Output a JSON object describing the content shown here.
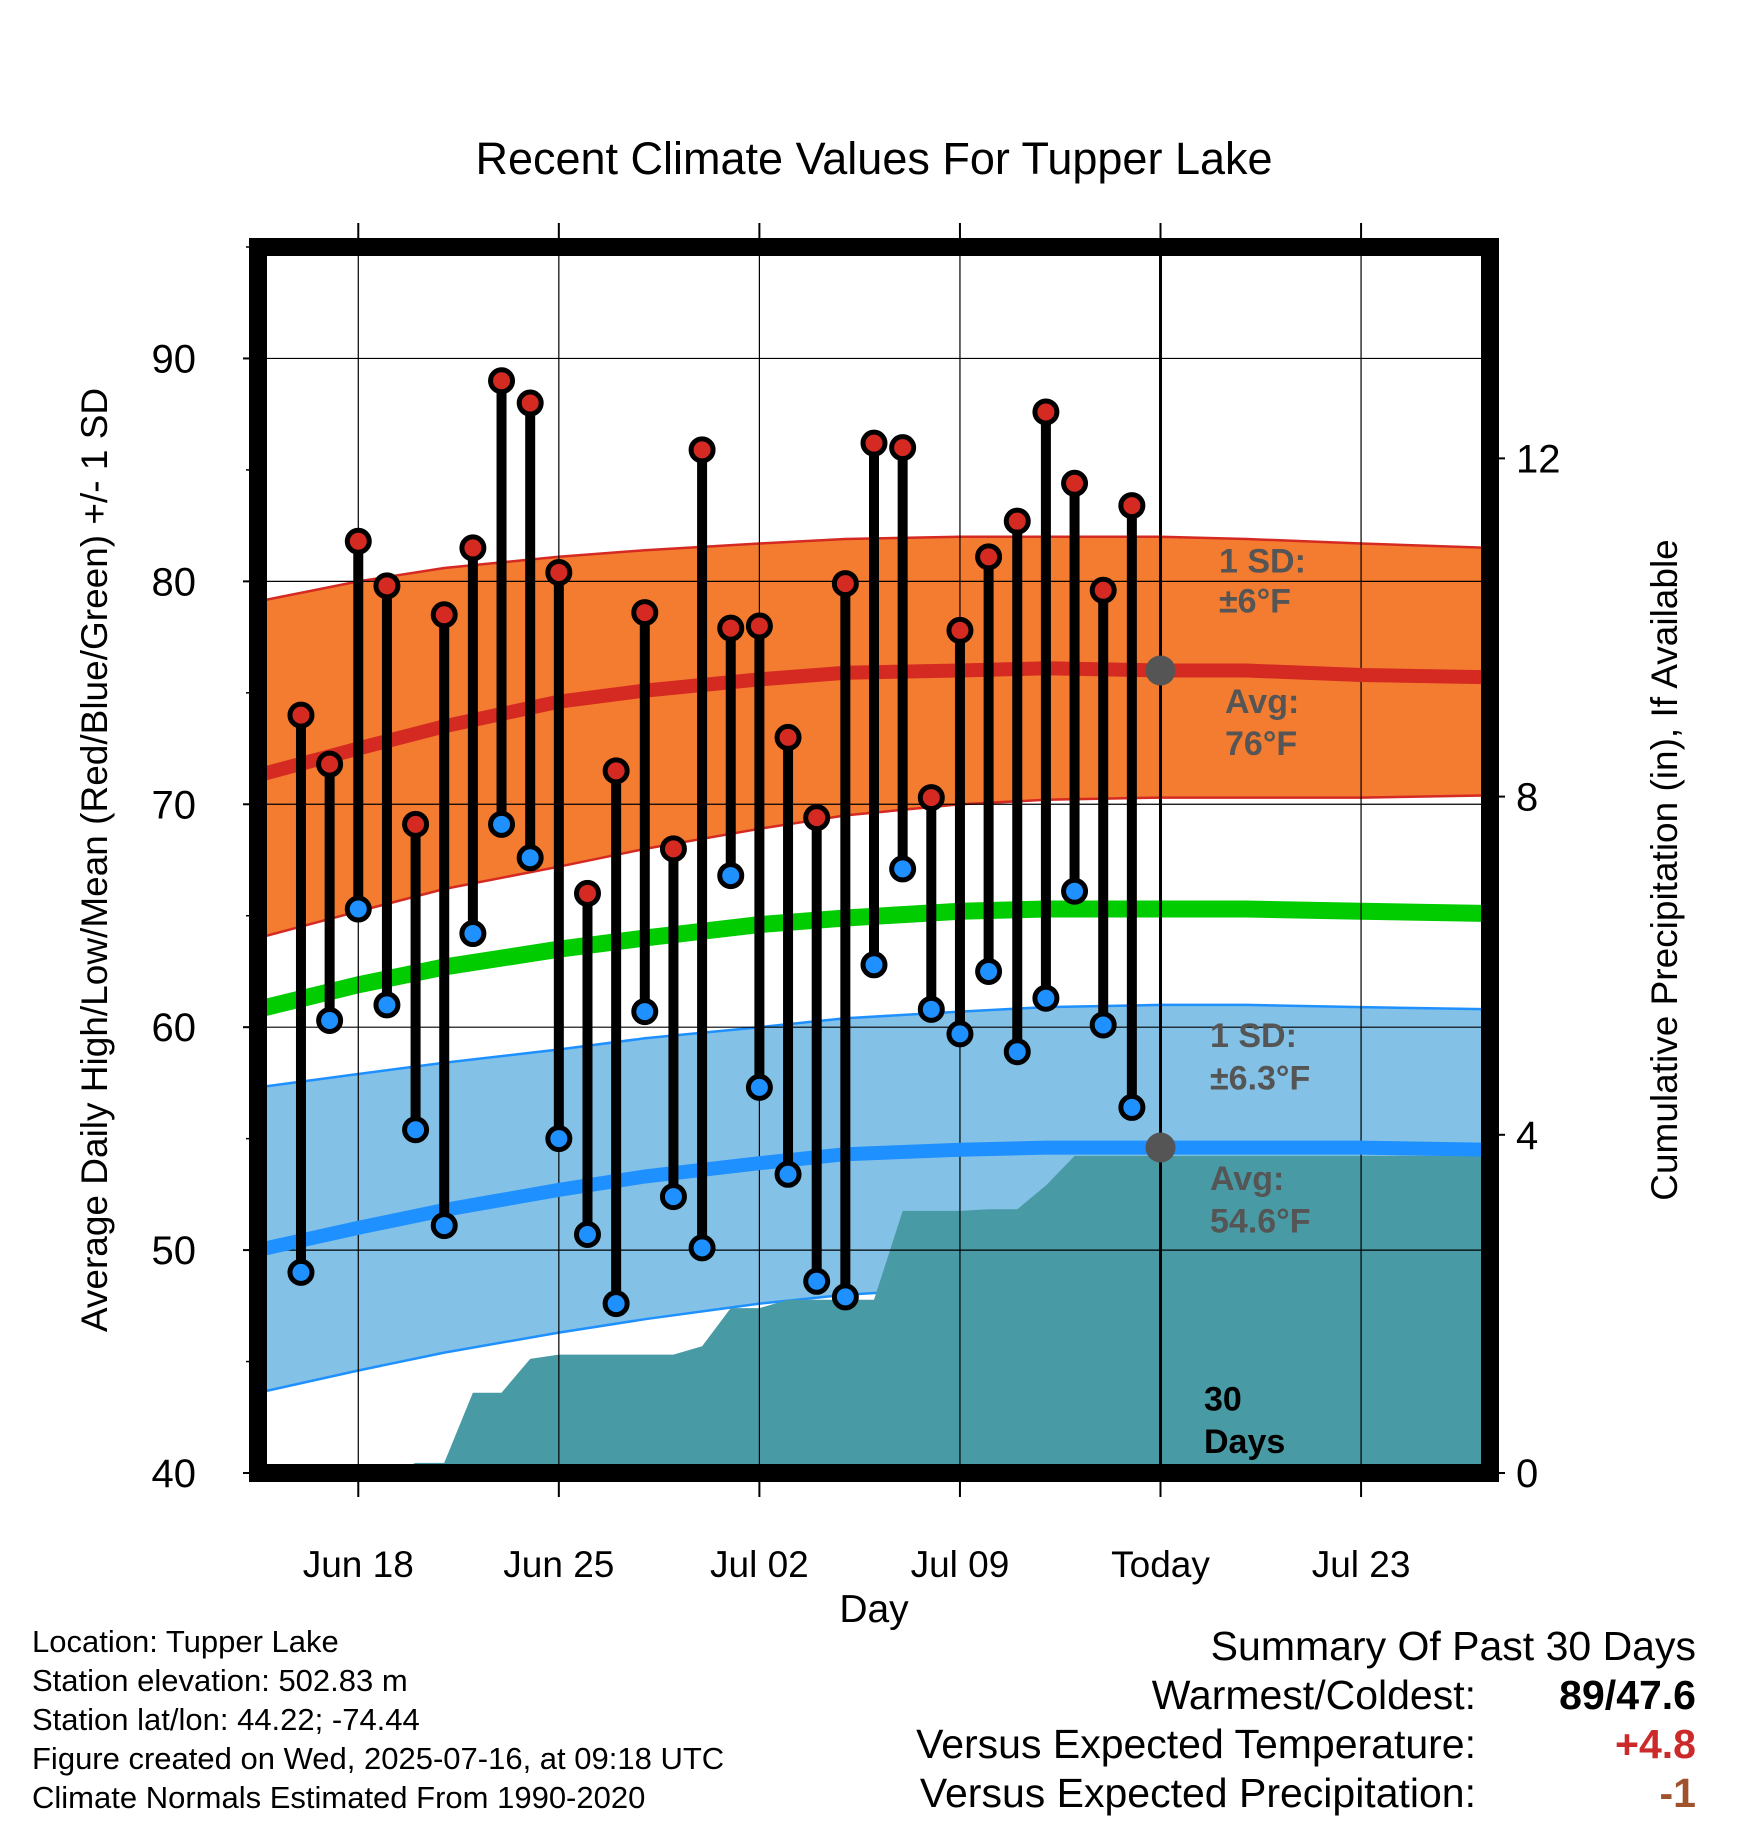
{
  "chart_data": {
    "type": "line",
    "title": "Recent Climate Values For Tupper Lake",
    "xlabel": "Day",
    "ylabel_left": "Average Daily High/Low/Mean (Red/Blue/Green) +/- 1 SD",
    "ylabel_right": "Cumulative Precipitation (in), If Available",
    "ylim": [
      40,
      95
    ],
    "yticks_left": [
      40,
      50,
      60,
      70,
      80,
      90
    ],
    "y2lim": [
      0,
      14.5
    ],
    "yticks_right": [
      0,
      4,
      8,
      12
    ],
    "xlim": [
      -3.5,
      39.5
    ],
    "xticks": [
      {
        "day": 0,
        "label": "Jun 18"
      },
      {
        "day": 7,
        "label": "Jun 25"
      },
      {
        "day": 14,
        "label": "Jul 02"
      },
      {
        "day": 21,
        "label": "Jul 09"
      },
      {
        "day": 28,
        "label": "Today"
      },
      {
        "day": 35,
        "label": "Jul 23"
      }
    ],
    "observed": {
      "days": [
        -2,
        -1,
        0,
        1,
        2,
        3,
        4,
        5,
        6,
        7,
        8,
        9,
        10,
        11,
        12,
        13,
        14,
        15,
        16,
        17,
        18,
        19,
        20,
        21,
        22,
        23,
        24,
        25,
        26,
        27
      ],
      "high": [
        74,
        71.8,
        81.8,
        79.8,
        69.1,
        78.5,
        81.5,
        89,
        88,
        80.4,
        66,
        71.5,
        78.6,
        68,
        85.9,
        77.9,
        78,
        73,
        69.4,
        79.9,
        86.2,
        86,
        70.3,
        77.8,
        81.1,
        82.7,
        87.6,
        84.4,
        79.6,
        83.4
      ],
      "low": [
        49,
        60.3,
        65.3,
        61,
        55.4,
        51.1,
        64.2,
        69.1,
        67.6,
        55,
        50.7,
        47.6,
        60.7,
        52.4,
        50.1,
        66.8,
        57.3,
        53.4,
        48.6,
        47.9,
        62.8,
        67.1,
        60.8,
        59.7,
        62.5,
        58.9,
        61.3,
        66.1,
        60.1,
        56.4
      ]
    },
    "normal_high": {
      "days": [
        -3.5,
        0,
        3,
        7,
        10,
        14,
        17,
        21,
        24,
        28,
        31,
        35,
        39.5
      ],
      "avg": [
        71.3,
        72.5,
        73.5,
        74.6,
        75.1,
        75.6,
        75.9,
        76,
        76.1,
        76,
        76,
        75.8,
        75.7
      ],
      "upper": [
        79.1,
        80,
        80.6,
        81.1,
        81.4,
        81.7,
        81.9,
        82,
        82,
        82,
        81.9,
        81.7,
        81.5
      ],
      "lower": [
        64,
        65.2,
        66.2,
        67.2,
        68,
        68.9,
        69.5,
        70,
        70.2,
        70.3,
        70.3,
        70.3,
        70.4
      ],
      "sd_label": "1 SD:",
      "sd_value": "±6°F",
      "avg_label": "Avg:",
      "avg_value": "76°F"
    },
    "normal_mean": {
      "days": [
        -3.5,
        0,
        3,
        7,
        10,
        14,
        17,
        21,
        24,
        28,
        31,
        35,
        39.5
      ],
      "avg": [
        60.8,
        61.9,
        62.7,
        63.5,
        64,
        64.6,
        64.9,
        65.2,
        65.3,
        65.3,
        65.3,
        65.2,
        65.1
      ]
    },
    "normal_low": {
      "days": [
        -3.5,
        0,
        3,
        7,
        10,
        14,
        17,
        21,
        24,
        28,
        31,
        35,
        39.5
      ],
      "avg": [
        50,
        51,
        51.8,
        52.7,
        53.3,
        53.9,
        54.3,
        54.5,
        54.6,
        54.6,
        54.6,
        54.6,
        54.5
      ],
      "upper": [
        57.3,
        57.9,
        58.4,
        59,
        59.5,
        60,
        60.4,
        60.7,
        60.9,
        61,
        61,
        60.9,
        60.8
      ],
      "lower": [
        43.6,
        44.6,
        45.4,
        46.3,
        46.9,
        47.6,
        48,
        48.3,
        48.5,
        48.7,
        48.7,
        48.7,
        48.6
      ],
      "sd_label": "1 SD:",
      "sd_value": "±6.3°F",
      "avg_label": "Avg:",
      "avg_value": "54.6°F"
    },
    "precip": {
      "days": [
        -3.5,
        -2,
        0,
        1,
        1.5,
        2,
        3,
        4,
        5,
        6,
        7,
        8,
        9,
        10,
        11,
        12,
        13,
        14,
        15,
        16,
        17,
        18,
        19,
        20,
        21,
        22,
        23,
        24,
        25,
        26,
        27,
        28,
        39.5
      ],
      "cumulative": [
        0,
        0,
        0,
        0,
        0.05,
        0.12,
        0.12,
        0.95,
        0.95,
        1.35,
        1.4,
        1.4,
        1.4,
        1.4,
        1.4,
        1.5,
        1.95,
        1.95,
        2.05,
        2.05,
        2.05,
        2.05,
        3.1,
        3.1,
        3.1,
        3.12,
        3.12,
        3.4,
        3.75,
        3.75,
        3.75,
        3.75,
        3.75
      ]
    },
    "today_day": 28,
    "window_label_line1": "30",
    "window_label_line2": "Days",
    "colors": {
      "high_band": "#f47c30",
      "high_edge": "#d42a22",
      "high_avg": "#d42a22",
      "mean_line": "#00cc00",
      "low_band": "#83c2e6",
      "low_edge": "#1e90ff",
      "low_avg": "#1e90ff",
      "precip": "#489ba5",
      "high_marker": "#d42a22",
      "low_marker": "#1e90ff",
      "annotation": "#555555"
    },
    "grid": true
  },
  "info": {
    "location": "Location: Tupper Lake",
    "elevation": "Station elevation: 502.83 m",
    "latlon": "Station lat/lon: 44.22; -74.44",
    "created": "Figure created on Wed, 2025-07-16, at 09:18 UTC",
    "normals": "Climate Normals Estimated From 1990-2020"
  },
  "summary": {
    "title": "Summary Of Past 30 Days",
    "warmest_label": "Warmest/Coldest:",
    "warmest_value": "89",
    "coldest_value": "47.6",
    "temp_label": "Versus Expected Temperature:",
    "temp_value": "+4.8",
    "temp_color": "#cc2a2a",
    "precip_label": "Versus Expected Precipitation:",
    "precip_value": "-1",
    "precip_color": "#a0522d"
  }
}
